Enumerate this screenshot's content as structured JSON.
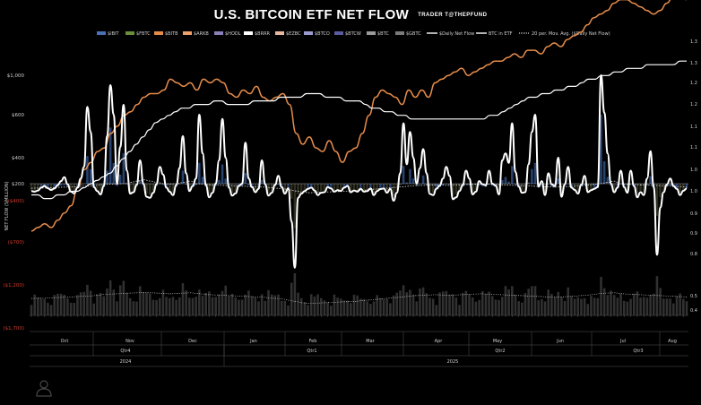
{
  "title": "U.S. BITCOIN ETF NET FLOW",
  "subtitle": "TRADER T@THEPFUND",
  "colors": {
    "IBIT": "#4a6fb5",
    "FBTC": "#6b8e3a",
    "BITB": "#e58b4a",
    "ARKB": "#f0a06a",
    "HODL": "#8a7fb8",
    "BRRR": "#ffffff",
    "EZBC": "#e6b8a0",
    "BTCO": "#9a9ad0",
    "BTCW": "#5a5aa0",
    "BTC": "#9a9a9a",
    "GBTC": "#7a7a7a",
    "daily_net_flow": "#ffffff",
    "btc_in_etf": "#ffffff",
    "ma20": "#d8d8d8",
    "bars": "#2c4a7c",
    "negative_tick": "#d23a2a"
  },
  "chart_data": {
    "type": "bar",
    "title": "U.S. BITCOIN ETF NET FLOW",
    "ylabel": "NET FLOW (SMILLION)",
    "ylim": [
      -1700,
      1000
    ],
    "y_ticks": [
      "$1,000",
      "$600",
      "$400",
      "$200",
      "($400)",
      "($700)",
      "($1,200)",
      "($1,700)"
    ],
    "right_axis_ticks": [
      "1.3",
      "1.3",
      "1.2",
      "1.2",
      "1.1",
      "1.1",
      "1.0",
      "1.0",
      "0.9",
      "0.9",
      "0.8",
      "0.5",
      "0.4"
    ],
    "legend": [
      "$IBIT",
      "$FBTC",
      "$BITB",
      "$ARKB",
      "$HODL",
      "$BRRR",
      "$EZBC",
      "$BTCO",
      "$BTCW",
      "$BTC",
      "$GBTC",
      "$Daily Net Flow",
      "BTC in ETF",
      "20 per. Mov. Avg. ($Daily Net Flow)"
    ],
    "months": [
      "Oct",
      "Nov",
      "Dec",
      "Jan",
      "Feb",
      "Mar",
      "Apr",
      "May",
      "Jun",
      "Jul",
      "Aug"
    ],
    "quarters": [
      "Qtr4",
      "Qtr1",
      "Qtr2",
      "Qtr3"
    ],
    "years": [
      "2024",
      "2025"
    ],
    "grid": false,
    "legend_position": "top",
    "series": [
      {
        "name": "$Daily Net Flow",
        "type": "line",
        "values": [
          -60,
          -80,
          -40,
          60,
          120,
          40,
          -20,
          30,
          150,
          220,
          250,
          180,
          -80,
          -140,
          60,
          240,
          330,
          680,
          520,
          80,
          -60,
          -180,
          120,
          500,
          900,
          600,
          200,
          450,
          700,
          300,
          -150,
          -100,
          160,
          380,
          200,
          -260,
          -300,
          -120,
          180,
          330,
          270,
          60,
          -80,
          -200,
          150,
          320,
          500,
          280,
          -60,
          120,
          240,
          600,
          420,
          150,
          -280,
          -120,
          200,
          380,
          580,
          400,
          60,
          -220,
          -140,
          120,
          200,
          470,
          240,
          80,
          -100,
          20,
          380,
          180,
          -220,
          -120,
          160,
          260,
          80,
          -150,
          40,
          -550,
          -1000,
          -300,
          -150,
          -60,
          20,
          60,
          -40,
          -200,
          -120,
          -100,
          80,
          30,
          -80,
          -30,
          -60,
          60,
          120,
          -100,
          -40,
          -80,
          20,
          -80,
          -60,
          30,
          -200,
          -60,
          10,
          30,
          -120,
          20,
          -400,
          -120,
          280,
          560,
          350,
          520,
          400,
          200,
          320,
          440,
          280,
          -160,
          -200,
          20,
          130,
          240,
          330,
          260,
          -350,
          -280,
          -60,
          150,
          300,
          240,
          -180,
          -80,
          220,
          180,
          140,
          300,
          200,
          130,
          -180,
          380,
          420,
          360,
          560,
          290,
          100,
          -120,
          -100,
          350,
          520,
          600,
          100,
          220,
          -200,
          280,
          180,
          110,
          400,
          -260,
          180,
          330,
          60,
          -20,
          -150,
          160,
          260,
          -100,
          -30,
          20,
          80,
          1000,
          620,
          420,
          200,
          -100,
          60,
          300,
          80,
          -120,
          300,
          120,
          -280,
          -100,
          -200,
          240,
          430,
          80,
          -850,
          -450,
          -100,
          170,
          240,
          120,
          20,
          -200,
          -50,
          30
        ]
      },
      {
        "name": "BTC in ETF",
        "type": "line",
        "values": [
          0.93,
          0.93,
          0.92,
          0.92,
          0.93,
          0.93,
          0.94,
          0.94,
          0.95,
          0.96,
          0.97,
          0.98,
          0.99,
          1.01,
          1.03,
          1.05,
          1.07,
          1.09,
          1.11,
          1.13,
          1.14,
          1.15,
          1.16,
          1.17,
          1.17,
          1.18,
          1.18,
          1.18,
          1.19,
          1.19,
          1.18,
          1.18,
          1.18,
          1.18,
          1.19,
          1.19,
          1.19,
          1.19,
          1.2,
          1.2,
          1.2,
          1.2,
          1.21,
          1.21,
          1.21,
          1.2,
          1.2,
          1.2,
          1.19,
          1.19,
          1.19,
          1.18,
          1.17,
          1.17,
          1.16,
          1.16,
          1.15,
          1.15,
          1.14,
          1.14,
          1.14,
          1.14,
          1.14,
          1.14,
          1.14,
          1.14,
          1.14,
          1.14,
          1.14,
          1.14,
          1.15,
          1.15,
          1.16,
          1.17,
          1.18,
          1.19,
          1.2,
          1.2,
          1.21,
          1.21,
          1.22,
          1.22,
          1.23,
          1.23,
          1.24,
          1.25,
          1.25,
          1.26,
          1.26,
          1.27,
          1.27,
          1.28,
          1.28,
          1.28,
          1.29,
          1.29,
          1.29,
          1.29,
          1.29,
          1.3,
          1.3
        ]
      },
      {
        "name": "$BITB",
        "type": "line",
        "values": [
          0.83,
          0.84,
          0.85,
          0.84,
          0.86,
          0.88,
          0.9,
          0.95,
          1.0,
          1.02,
          1.05,
          1.06,
          1.1,
          1.12,
          1.15,
          1.16,
          1.18,
          1.2,
          1.21,
          1.21,
          1.22,
          1.25,
          1.24,
          1.23,
          1.24,
          1.22,
          1.25,
          1.24,
          1.25,
          1.24,
          1.21,
          1.2,
          1.22,
          1.21,
          1.23,
          1.2,
          1.19,
          1.2,
          1.21,
          1.18,
          1.1,
          1.07,
          1.09,
          1.06,
          1.05,
          1.08,
          1.05,
          1.02,
          1.05,
          1.06,
          1.1,
          1.15,
          1.2,
          1.22,
          1.21,
          1.2,
          1.18,
          1.22,
          1.2,
          1.22,
          1.2,
          1.24,
          1.25,
          1.26,
          1.27,
          1.28,
          1.26,
          1.27,
          1.28,
          1.29,
          1.3,
          1.3,
          1.31,
          1.32,
          1.31,
          1.33,
          1.33,
          1.32,
          1.34,
          1.35,
          1.34,
          1.36,
          1.37,
          1.38,
          1.4,
          1.42,
          1.43,
          1.44,
          1.46,
          1.47,
          1.47,
          1.46,
          1.45,
          1.44,
          1.43,
          1.44,
          1.46,
          1.48,
          1.48,
          1.47
        ]
      },
      {
        "name": "20 per. Mov. Avg. ($Daily Net Flow)",
        "type": "line",
        "values": [
          40,
          45,
          50,
          60,
          70,
          80,
          90,
          100,
          110,
          120,
          140,
          170,
          180,
          190,
          200,
          210,
          220,
          230,
          220,
          210,
          200,
          190,
          200,
          210,
          220,
          200,
          180,
          160,
          150,
          140,
          130,
          120,
          110,
          100,
          90,
          80,
          60,
          40,
          20,
          -20,
          -60,
          -100,
          -120,
          -110,
          -100,
          -90,
          -80,
          -70,
          -60,
          -50,
          -30,
          -10,
          10,
          30,
          50,
          70,
          90,
          110,
          130,
          140,
          150,
          160,
          150,
          140,
          150,
          160,
          170,
          180,
          190,
          180,
          170,
          160,
          150,
          140,
          130,
          120,
          110,
          100,
          90,
          80,
          90,
          100,
          110,
          130,
          150,
          170,
          200,
          210,
          220,
          200,
          180,
          170,
          160,
          150,
          140,
          130,
          120,
          110,
          100,
          90
        ]
      }
    ]
  }
}
